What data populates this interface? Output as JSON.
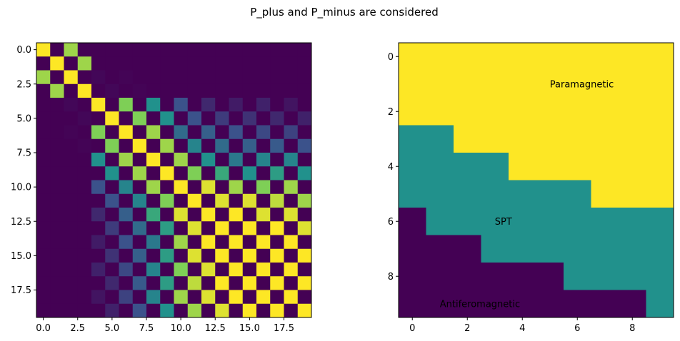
{
  "figure": {
    "title": "P_plus and P_minus are considered"
  },
  "chart_data": [
    {
      "type": "heatmap",
      "title": "",
      "xlabel": "",
      "ylabel": "",
      "rows": 20,
      "cols": 20,
      "xlim": [
        -0.5,
        19.5
      ],
      "ylim": [
        19.5,
        -0.5
      ],
      "xticks": [
        0.0,
        2.5,
        5.0,
        7.5,
        10.0,
        12.5,
        15.0,
        17.5
      ],
      "xtick_labels": [
        "0.0",
        "2.5",
        "5.0",
        "7.5",
        "10.0",
        "12.5",
        "15.0",
        "17.5"
      ],
      "yticks": [
        0.0,
        2.5,
        5.0,
        7.5,
        10.0,
        12.5,
        15.0,
        17.5
      ],
      "ytick_labels": [
        "0.0",
        "2.5",
        "5.0",
        "7.5",
        "10.0",
        "12.5",
        "15.0",
        "17.5"
      ],
      "colormap": "viridis",
      "vmin": 0,
      "vmax": 1,
      "z": [
        [
          1,
          0,
          0.85,
          0,
          0,
          0,
          0,
          0,
          0,
          0,
          0,
          0,
          0,
          0,
          0,
          0,
          0,
          0,
          0,
          0
        ],
        [
          0,
          1,
          0,
          0.85,
          0,
          0,
          0,
          0,
          0,
          0,
          0,
          0,
          0,
          0,
          0,
          0,
          0,
          0,
          0,
          0
        ],
        [
          0.85,
          0,
          1,
          0,
          0.02,
          0,
          0.01,
          0,
          0,
          0,
          0,
          0,
          0,
          0,
          0,
          0,
          0,
          0,
          0,
          0
        ],
        [
          0,
          0.85,
          0,
          1,
          0,
          0.02,
          0,
          0.01,
          0,
          0,
          0,
          0,
          0,
          0,
          0,
          0,
          0,
          0,
          0,
          0
        ],
        [
          0,
          0,
          0.02,
          0,
          1,
          0,
          0.8,
          0,
          0.5,
          0,
          0.25,
          0,
          0.12,
          0,
          0.08,
          0,
          0.1,
          0,
          0.06,
          0
        ],
        [
          0,
          0,
          0,
          0.02,
          0,
          1,
          0,
          0.8,
          0,
          0.5,
          0,
          0.25,
          0,
          0.18,
          0,
          0.15,
          0,
          0.12,
          0,
          0.1
        ],
        [
          0,
          0,
          0.01,
          0,
          0.8,
          0,
          1,
          0,
          0.85,
          0,
          0.35,
          0,
          0.3,
          0,
          0.25,
          0,
          0.22,
          0,
          0.2,
          0
        ],
        [
          0,
          0,
          0,
          0.01,
          0,
          0.8,
          0,
          1,
          0,
          0.85,
          0,
          0.45,
          0,
          0.35,
          0,
          0.3,
          0,
          0.28,
          0,
          0.25
        ],
        [
          0,
          0,
          0,
          0,
          0.5,
          0,
          0.85,
          0,
          1,
          0,
          0.85,
          0,
          0.5,
          0,
          0.4,
          0,
          0.45,
          0,
          0.45,
          0
        ],
        [
          0,
          0,
          0,
          0,
          0,
          0.5,
          0,
          0.85,
          0,
          1,
          0,
          0.8,
          0,
          0.6,
          0,
          0.5,
          0,
          0.55,
          0,
          0.5
        ],
        [
          0,
          0,
          0,
          0,
          0.25,
          0,
          0.45,
          0,
          0.85,
          0,
          1,
          0,
          0.95,
          0,
          0.85,
          0,
          0.8,
          0,
          0.85,
          0
        ],
        [
          0,
          0,
          0,
          0,
          0,
          0.25,
          0,
          0.45,
          0,
          0.8,
          0,
          1,
          0,
          0.95,
          0,
          0.95,
          0,
          0.9,
          0,
          0.85
        ],
        [
          0,
          0,
          0,
          0,
          0.12,
          0,
          0.3,
          0,
          0.6,
          0,
          0.95,
          0,
          1,
          0,
          1,
          0,
          0.95,
          0,
          0.95,
          0
        ],
        [
          0,
          0,
          0,
          0,
          0,
          0.18,
          0,
          0.35,
          0,
          0.55,
          0,
          0.95,
          0,
          1,
          0,
          1,
          0,
          1,
          0,
          0.95
        ],
        [
          0,
          0,
          0,
          0,
          0.08,
          0,
          0.25,
          0,
          0.4,
          0,
          0.85,
          0,
          1,
          0,
          1,
          0,
          1,
          0,
          1,
          0
        ],
        [
          0,
          0,
          0,
          0,
          0,
          0.15,
          0,
          0.3,
          0,
          0.55,
          0,
          0.95,
          0,
          1,
          0,
          1,
          0,
          1,
          0,
          1
        ],
        [
          0,
          0,
          0,
          0,
          0.1,
          0,
          0.22,
          0,
          0.45,
          0,
          0.8,
          0,
          0.95,
          0,
          1,
          0,
          1,
          0,
          1,
          0
        ],
        [
          0,
          0,
          0,
          0,
          0,
          0.12,
          0,
          0.28,
          0,
          0.55,
          0,
          0.9,
          0,
          1,
          0,
          1,
          0,
          1,
          0,
          1
        ],
        [
          0,
          0,
          0,
          0,
          0.06,
          0,
          0.2,
          0,
          0.45,
          0,
          0.85,
          0,
          0.95,
          0,
          1,
          0,
          1,
          0,
          1,
          0
        ],
        [
          0,
          0,
          0,
          0,
          0,
          0.1,
          0,
          0.25,
          0,
          0.5,
          0,
          0.85,
          0,
          0.95,
          0,
          1,
          0,
          1,
          0,
          1
        ]
      ]
    },
    {
      "type": "heatmap",
      "title": "",
      "xlabel": "",
      "ylabel": "",
      "rows": 10,
      "cols": 10,
      "xlim": [
        -0.5,
        9.5
      ],
      "ylim": [
        9.5,
        -0.5
      ],
      "xticks": [
        0,
        2,
        4,
        6,
        8
      ],
      "xtick_labels": [
        "0",
        "2",
        "4",
        "6",
        "8"
      ],
      "yticks": [
        0,
        2,
        4,
        6,
        8
      ],
      "ytick_labels": [
        "0",
        "2",
        "4",
        "6",
        "8"
      ],
      "colormap": "viridis",
      "vmin": 0,
      "vmax": 2,
      "z": [
        [
          2,
          2,
          2,
          2,
          2,
          2,
          2,
          2,
          2,
          2
        ],
        [
          2,
          2,
          2,
          2,
          2,
          2,
          2,
          2,
          2,
          2
        ],
        [
          2,
          2,
          2,
          2,
          2,
          2,
          2,
          2,
          2,
          2
        ],
        [
          1,
          1,
          2,
          2,
          2,
          2,
          2,
          2,
          2,
          2
        ],
        [
          1,
          1,
          1,
          1,
          2,
          2,
          2,
          2,
          2,
          2
        ],
        [
          1,
          1,
          1,
          1,
          1,
          1,
          1,
          2,
          2,
          2
        ],
        [
          0,
          1,
          1,
          1,
          1,
          1,
          1,
          1,
          1,
          1
        ],
        [
          0,
          0,
          0,
          1,
          1,
          1,
          1,
          1,
          1,
          1
        ],
        [
          0,
          0,
          0,
          0,
          0,
          0,
          1,
          1,
          1,
          1
        ],
        [
          0,
          0,
          0,
          0,
          0,
          0,
          0,
          0,
          0,
          1
        ]
      ],
      "annotations": [
        {
          "text": "Paramagnetic",
          "x": 5,
          "y": 1
        },
        {
          "text": "SPT",
          "x": 3,
          "y": 6
        },
        {
          "text": "Antiferomagnetic",
          "x": 1,
          "y": 9
        }
      ]
    }
  ]
}
